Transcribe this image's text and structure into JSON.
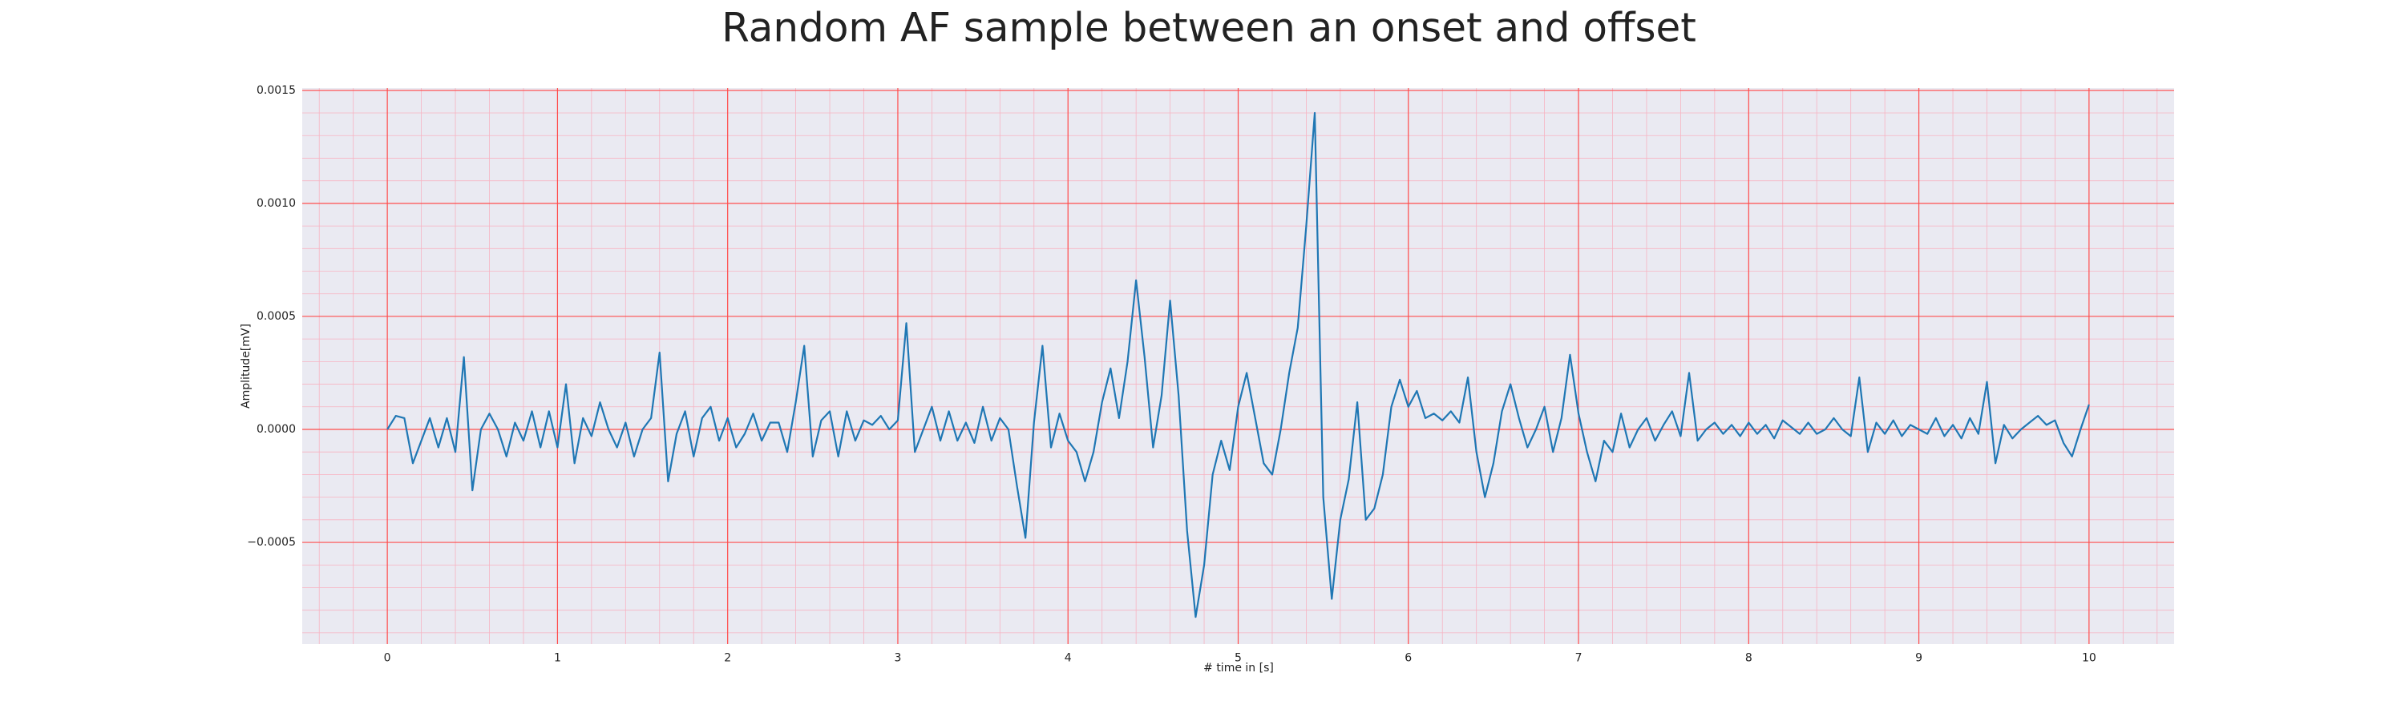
{
  "chart_data": {
    "type": "line",
    "title": "Random AF sample between an onset and offset",
    "xlabel": "# time in [s]",
    "ylabel": "Amplitude[mV]",
    "xlim": [
      -0.5,
      10.5
    ],
    "ylim": [
      -0.00095,
      0.00151
    ],
    "xticks": [
      0,
      1,
      2,
      3,
      4,
      5,
      6,
      7,
      8,
      9,
      10
    ],
    "yticks": [
      {
        "value": -0.0005,
        "label": "−0.0005"
      },
      {
        "value": 0,
        "label": "0.0000"
      },
      {
        "value": 0.0005,
        "label": "0.0005"
      },
      {
        "value": 0.001,
        "label": "0.0010"
      },
      {
        "value": 0.0015,
        "label": "0.0015"
      }
    ],
    "grid": true,
    "minor_grid": true,
    "background": "#eaeaf2",
    "grid_color": "#ff4d4d",
    "minor_grid_color": "#f7b3c2",
    "x": [
      0,
      0.05,
      0.1,
      0.15,
      0.2,
      0.25,
      0.3,
      0.35,
      0.4,
      0.45,
      0.5,
      0.55,
      0.6,
      0.65,
      0.7,
      0.75,
      0.8,
      0.85,
      0.9,
      0.95,
      1,
      1.05,
      1.1,
      1.15,
      1.2,
      1.25,
      1.3,
      1.35,
      1.4,
      1.45,
      1.5,
      1.55,
      1.6,
      1.65,
      1.7,
      1.75,
      1.8,
      1.85,
      1.9,
      1.95,
      2,
      2.05,
      2.1,
      2.15,
      2.2,
      2.25,
      2.3,
      2.35,
      2.4,
      2.45,
      2.5,
      2.55,
      2.6,
      2.65,
      2.7,
      2.75,
      2.8,
      2.85,
      2.9,
      2.95,
      3,
      3.05,
      3.1,
      3.15,
      3.2,
      3.25,
      3.3,
      3.35,
      3.4,
      3.45,
      3.5,
      3.55,
      3.6,
      3.65,
      3.7,
      3.75,
      3.8,
      3.85,
      3.9,
      3.95,
      4,
      4.05,
      4.1,
      4.15,
      4.2,
      4.25,
      4.3,
      4.35,
      4.4,
      4.45,
      4.5,
      4.55,
      4.6,
      4.65,
      4.7,
      4.75,
      4.8,
      4.85,
      4.9,
      4.95,
      5,
      5.05,
      5.1,
      5.15,
      5.2,
      5.25,
      5.3,
      5.35,
      5.4,
      5.45,
      5.5,
      5.55,
      5.6,
      5.65,
      5.7,
      5.75,
      5.8,
      5.85,
      5.9,
      5.95,
      6,
      6.05,
      6.1,
      6.15,
      6.2,
      6.25,
      6.3,
      6.35,
      6.4,
      6.45,
      6.5,
      6.55,
      6.6,
      6.65,
      6.7,
      6.75,
      6.8,
      6.85,
      6.9,
      6.95,
      7,
      7.05,
      7.1,
      7.15,
      7.2,
      7.25,
      7.3,
      7.35,
      7.4,
      7.45,
      7.5,
      7.55,
      7.6,
      7.65,
      7.7,
      7.75,
      7.8,
      7.85,
      7.9,
      7.95,
      8,
      8.05,
      8.1,
      8.15,
      8.2,
      8.25,
      8.3,
      8.35,
      8.4,
      8.45,
      8.5,
      8.55,
      8.6,
      8.65,
      8.7,
      8.75,
      8.8,
      8.85,
      8.9,
      8.95,
      9,
      9.05,
      9.1,
      9.15,
      9.2,
      9.25,
      9.3,
      9.35,
      9.4,
      9.45,
      9.5,
      9.55,
      9.6,
      9.65,
      9.7,
      9.75,
      9.8,
      9.85,
      9.9,
      9.95,
      10
    ],
    "series": [
      {
        "color": "#1f77b4",
        "values": [
          0,
          6e-05,
          5e-05,
          -0.00015,
          -5e-05,
          5e-05,
          -8e-05,
          5e-05,
          -0.0001,
          0.00032,
          -0.00027,
          0,
          7e-05,
          0,
          -0.00012,
          3e-05,
          -5e-05,
          8e-05,
          -8e-05,
          8e-05,
          -8e-05,
          0.0002,
          -0.00015,
          5e-05,
          -3e-05,
          0.00012,
          0,
          -8e-05,
          3e-05,
          -0.00012,
          0,
          5e-05,
          0.00034,
          -0.00023,
          -2e-05,
          8e-05,
          -0.00012,
          5e-05,
          0.0001,
          -5e-05,
          5e-05,
          -8e-05,
          -2e-05,
          7e-05,
          -5e-05,
          3e-05,
          3e-05,
          -0.0001,
          0.00012,
          0.00037,
          -0.00012,
          4e-05,
          8e-05,
          -0.00012,
          8e-05,
          -5e-05,
          4e-05,
          2e-05,
          6e-05,
          0,
          4e-05,
          0.00047,
          -0.0001,
          0,
          0.0001,
          -5e-05,
          8e-05,
          -5e-05,
          3e-05,
          -6e-05,
          0.0001,
          -5e-05,
          5e-05,
          0,
          -0.00025,
          -0.00048,
          3e-05,
          0.00037,
          -8e-05,
          7e-05,
          -5e-05,
          -0.0001,
          -0.00023,
          -0.0001,
          0.00012,
          0.00027,
          5e-05,
          0.0003,
          0.00066,
          0.00032,
          -8e-05,
          0.00015,
          0.00057,
          0.00015,
          -0.00045,
          -0.00083,
          -0.0006,
          -0.0002,
          -5e-05,
          -0.00018,
          0.0001,
          0.00025,
          5e-05,
          -0.00015,
          -0.0002,
          0,
          0.00025,
          0.00045,
          0.0009,
          0.0014,
          -0.0003,
          -0.00075,
          -0.0004,
          -0.00022,
          0.00012,
          -0.0004,
          -0.00035,
          -0.0002,
          0.0001,
          0.00022,
          0.0001,
          0.00017,
          5e-05,
          7e-05,
          4e-05,
          8e-05,
          3e-05,
          0.00023,
          -0.0001,
          -0.0003,
          -0.00015,
          8e-05,
          0.0002,
          5e-05,
          -8e-05,
          0,
          0.0001,
          -0.0001,
          5e-05,
          0.00033,
          7e-05,
          -0.0001,
          -0.00023,
          -5e-05,
          -0.0001,
          7e-05,
          -8e-05,
          0,
          5e-05,
          -5e-05,
          2e-05,
          8e-05,
          -3e-05,
          0.00025,
          -5e-05,
          0,
          3e-05,
          -2e-05,
          2e-05,
          -3e-05,
          3e-05,
          -2e-05,
          2e-05,
          -4e-05,
          4e-05,
          1e-05,
          -2e-05,
          3e-05,
          -2e-05,
          0,
          5e-05,
          0,
          -3e-05,
          0.00023,
          -0.0001,
          3e-05,
          -2e-05,
          4e-05,
          -3e-05,
          2e-05,
          0,
          -2e-05,
          5e-05,
          -3e-05,
          2e-05,
          -4e-05,
          5e-05,
          -2e-05,
          0.00021,
          -0.00015,
          2e-05,
          -4e-05,
          0,
          3e-05,
          6e-05,
          2e-05,
          4e-05,
          -6e-05,
          -0.00012,
          0,
          0.00011
        ]
      }
    ]
  }
}
